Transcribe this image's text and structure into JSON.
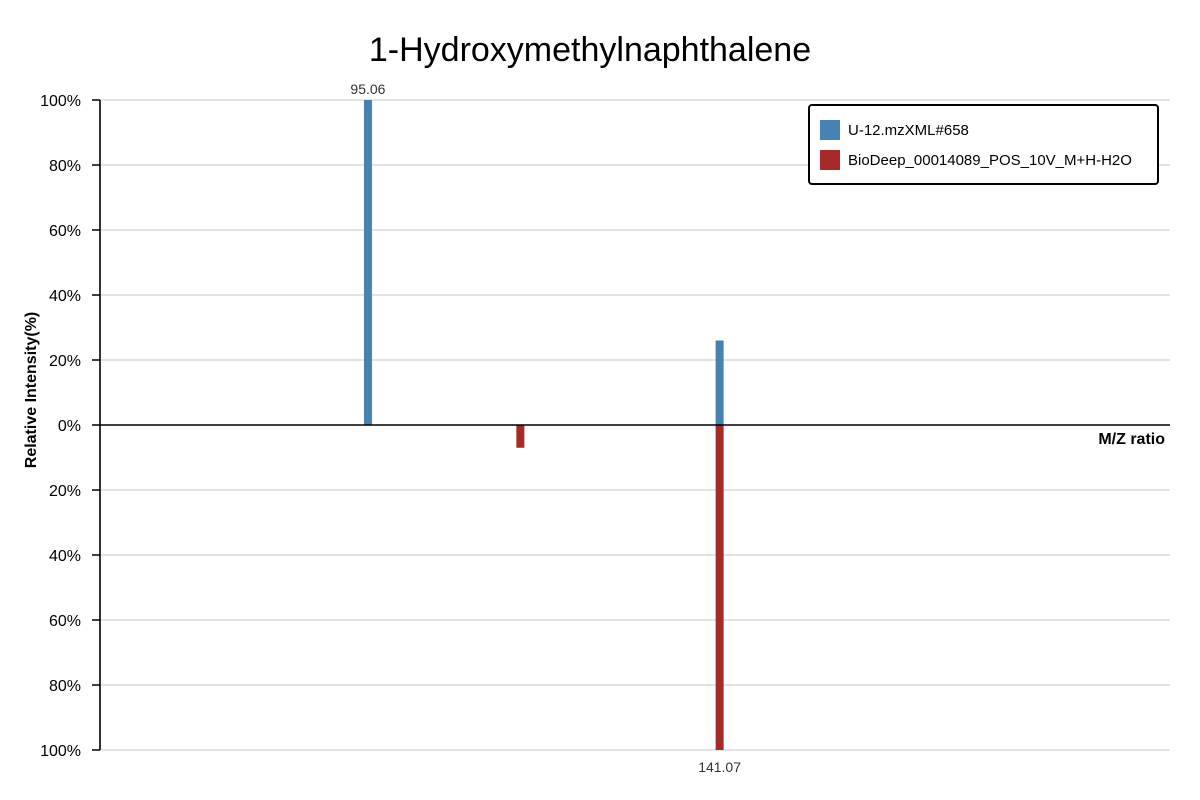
{
  "chart_data": {
    "type": "bar",
    "title": "1-Hydroxymethylnaphthalene",
    "xlabel": "M/Z ratio",
    "ylabel": "Relative Intensity(%)",
    "xlim": [
      60,
      200
    ],
    "ylim": [
      -100,
      100
    ],
    "yticks": [
      100,
      80,
      60,
      40,
      20,
      0,
      -20,
      -40,
      -60,
      -80,
      -100
    ],
    "ytick_labels": [
      "100%",
      "80%",
      "60%",
      "40%",
      "20%",
      "0%",
      "20%",
      "40%",
      "60%",
      "80%",
      "100%"
    ],
    "grid": true,
    "legend_position": "top-right",
    "series": [
      {
        "name": "U-12.mzXML#658",
        "color": "#4682b4",
        "direction": "up",
        "peaks": [
          {
            "mz": 95.06,
            "intensity": 100,
            "label": "95.06"
          },
          {
            "mz": 141.07,
            "intensity": 26
          }
        ]
      },
      {
        "name": "BioDeep_00014089_POS_10V_M+H-H2O",
        "color": "#a52a2a",
        "direction": "down",
        "peaks": [
          {
            "mz": 115.0,
            "intensity": 7
          },
          {
            "mz": 141.07,
            "intensity": 100,
            "label": "141.07"
          }
        ]
      }
    ]
  }
}
